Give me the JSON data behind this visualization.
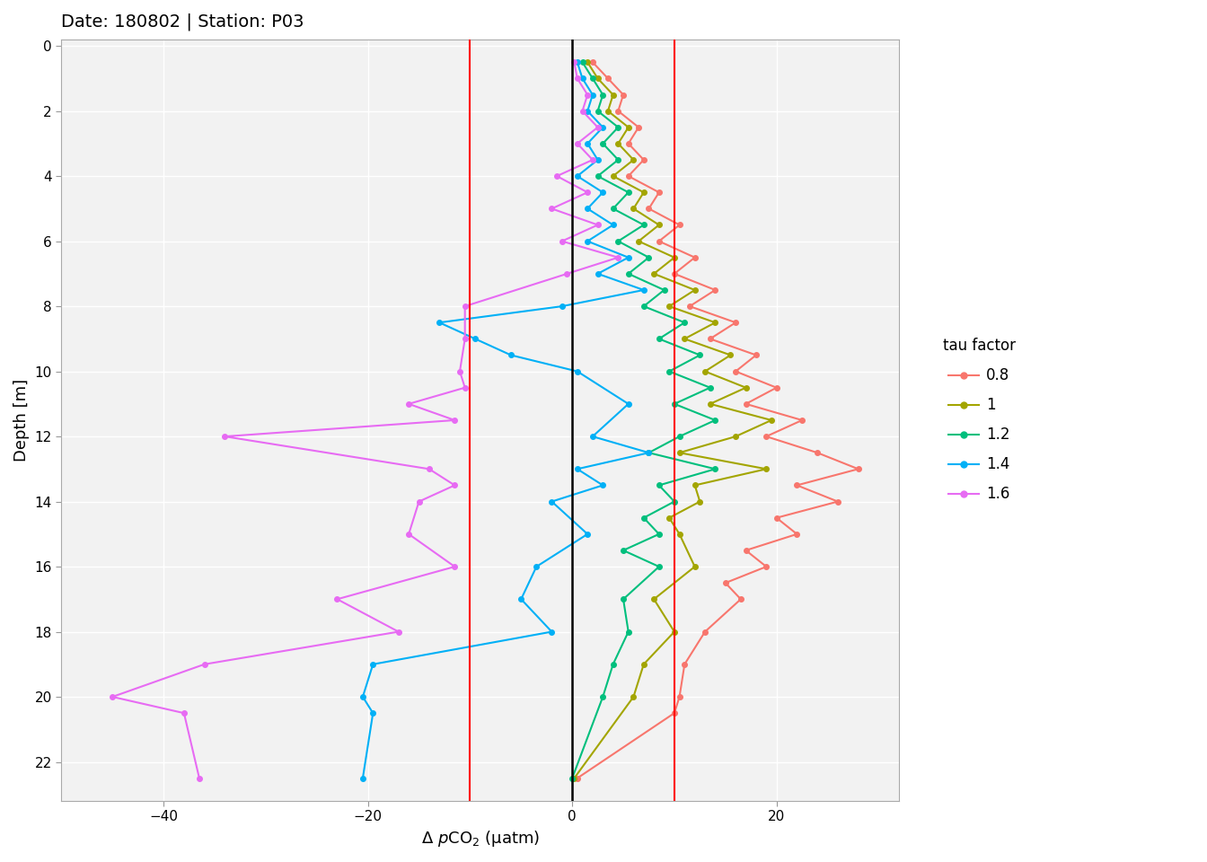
{
  "title": "Date: 180802 | Station: P03",
  "xlabel": "Δ pCO₂ (µatm)",
  "ylabel": "Depth [m]",
  "xlim": [
    -50,
    32
  ],
  "ylim_bottom": 23.2,
  "ylim_top": -0.2,
  "xticks": [
    -40,
    -20,
    0,
    20
  ],
  "yticks": [
    0,
    2,
    4,
    6,
    8,
    10,
    12,
    14,
    16,
    18,
    20,
    22
  ],
  "vline_black": 0,
  "vlines_red": [
    -10,
    10
  ],
  "legend_title": "tau factor",
  "colors": {
    "0.8": "#F8766D",
    "1": "#A3A500",
    "1.2": "#00BF7D",
    "1.4": "#00B0F6",
    "1.6": "#E76BF3"
  },
  "profiles": {
    "0.8": {
      "depth": [
        0.5,
        1.0,
        1.5,
        2.0,
        2.5,
        3.0,
        3.5,
        4.0,
        4.5,
        5.0,
        5.5,
        6.0,
        6.5,
        7.0,
        7.5,
        8.0,
        8.5,
        9.0,
        9.5,
        10.0,
        10.5,
        11.0,
        11.5,
        12.0,
        12.5,
        13.0,
        13.5,
        14.0,
        14.5,
        15.0,
        15.5,
        16.0,
        16.5,
        17.0,
        18.0,
        19.0,
        20.0,
        20.5,
        22.5
      ],
      "pco2": [
        2.0,
        3.5,
        5.0,
        4.5,
        6.5,
        5.5,
        7.0,
        5.5,
        8.5,
        7.5,
        10.5,
        8.5,
        12.0,
        10.0,
        14.0,
        11.5,
        16.0,
        13.5,
        18.0,
        16.0,
        20.0,
        17.0,
        22.5,
        19.0,
        24.0,
        28.0,
        22.0,
        26.0,
        20.0,
        22.0,
        17.0,
        19.0,
        15.0,
        16.5,
        13.0,
        11.0,
        10.5,
        10.0,
        0.5
      ]
    },
    "1": {
      "depth": [
        0.5,
        1.0,
        1.5,
        2.0,
        2.5,
        3.0,
        3.5,
        4.0,
        4.5,
        5.0,
        5.5,
        6.0,
        6.5,
        7.0,
        7.5,
        8.0,
        8.5,
        9.0,
        9.5,
        10.0,
        10.5,
        11.0,
        11.5,
        12.0,
        12.5,
        13.0,
        13.5,
        14.0,
        14.5,
        15.0,
        16.0,
        17.0,
        18.0,
        19.0,
        20.0,
        22.5
      ],
      "pco2": [
        1.5,
        2.5,
        4.0,
        3.5,
        5.5,
        4.5,
        6.0,
        4.0,
        7.0,
        6.0,
        8.5,
        6.5,
        10.0,
        8.0,
        12.0,
        9.5,
        14.0,
        11.0,
        15.5,
        13.0,
        17.0,
        13.5,
        19.5,
        16.0,
        10.5,
        19.0,
        12.0,
        12.5,
        9.5,
        10.5,
        12.0,
        8.0,
        10.0,
        7.0,
        6.0,
        0.2
      ]
    },
    "1.2": {
      "depth": [
        0.5,
        1.0,
        1.5,
        2.0,
        2.5,
        3.0,
        3.5,
        4.0,
        4.5,
        5.0,
        5.5,
        6.0,
        6.5,
        7.0,
        7.5,
        8.0,
        8.5,
        9.0,
        9.5,
        10.0,
        10.5,
        11.0,
        11.5,
        12.0,
        12.5,
        13.0,
        13.5,
        14.0,
        14.5,
        15.0,
        15.5,
        16.0,
        17.0,
        18.0,
        19.0,
        20.0,
        22.5
      ],
      "pco2": [
        1.0,
        2.0,
        3.0,
        2.5,
        4.5,
        3.0,
        4.5,
        2.5,
        5.5,
        4.0,
        7.0,
        4.5,
        7.5,
        5.5,
        9.0,
        7.0,
        11.0,
        8.5,
        12.5,
        9.5,
        13.5,
        10.0,
        14.0,
        10.5,
        7.5,
        14.0,
        8.5,
        10.0,
        7.0,
        8.5,
        5.0,
        8.5,
        5.0,
        5.5,
        4.0,
        3.0,
        0.0
      ]
    },
    "1.4": {
      "depth": [
        0.5,
        1.0,
        1.5,
        2.0,
        2.5,
        3.0,
        3.5,
        4.0,
        4.5,
        5.0,
        5.5,
        6.0,
        6.5,
        7.0,
        7.5,
        8.0,
        8.5,
        9.0,
        9.5,
        10.0,
        11.0,
        12.0,
        12.5,
        13.0,
        13.5,
        14.0,
        15.0,
        16.0,
        17.0,
        18.0,
        19.0,
        20.0,
        20.5,
        22.5
      ],
      "pco2": [
        0.5,
        1.0,
        2.0,
        1.5,
        3.0,
        1.5,
        2.5,
        0.5,
        3.0,
        1.5,
        4.0,
        1.5,
        5.5,
        2.5,
        7.0,
        -1.0,
        -13.0,
        -9.5,
        -6.0,
        0.5,
        5.5,
        2.0,
        7.5,
        0.5,
        3.0,
        -2.0,
        1.5,
        -3.5,
        -5.0,
        -2.0,
        -19.5,
        -20.5,
        -19.5,
        -20.5
      ]
    },
    "1.6": {
      "depth": [
        0.5,
        1.0,
        1.5,
        2.0,
        2.5,
        3.0,
        3.5,
        4.0,
        4.5,
        5.0,
        5.5,
        6.0,
        6.5,
        7.0,
        8.0,
        9.0,
        10.0,
        10.5,
        11.0,
        11.5,
        12.0,
        13.0,
        13.5,
        14.0,
        15.0,
        16.0,
        17.0,
        18.0,
        19.0,
        20.0,
        20.5,
        22.5
      ],
      "pco2": [
        0.2,
        0.5,
        1.5,
        1.0,
        2.5,
        0.5,
        2.0,
        -1.5,
        1.5,
        -2.0,
        2.5,
        -1.0,
        4.5,
        -0.5,
        -10.5,
        -10.5,
        -11.0,
        -10.5,
        -16.0,
        -11.5,
        -34.0,
        -14.0,
        -11.5,
        -15.0,
        -16.0,
        -11.5,
        -23.0,
        -17.0,
        -36.0,
        -45.0,
        -38.0,
        -36.5
      ]
    }
  },
  "background_color": "#f2f2f2",
  "fig_background": "white",
  "grid_color": "white",
  "marker_size": 4,
  "line_width": 1.5,
  "title_fontsize": 14,
  "axis_fontsize": 13,
  "tick_fontsize": 11,
  "legend_fontsize": 12
}
